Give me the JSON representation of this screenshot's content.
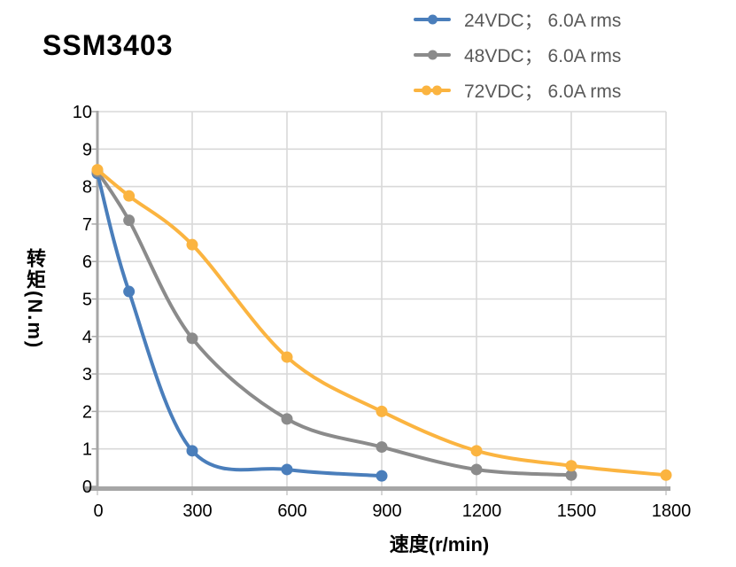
{
  "title": "SSM3403",
  "legend": [
    {
      "id": "24vdc",
      "label": "24VDC； 6.0A rms",
      "color": "#4A7EBB",
      "dots": 1
    },
    {
      "id": "48vdc",
      "label": "48VDC； 6.0A rms",
      "color": "#8B8B8B",
      "dots": 1
    },
    {
      "id": "72vdc",
      "label": "72VDC； 6.0A rms",
      "color": "#FBB440",
      "dots": 2
    }
  ],
  "chart_data": {
    "type": "line",
    "title": "SSM3403",
    "xlabel": "速度(r/min)",
    "ylabel": "转矩(N.m)",
    "xlim": [
      0,
      1800
    ],
    "ylim": [
      0,
      10
    ],
    "x_ticks": [
      0,
      300,
      600,
      900,
      1200,
      1500,
      1800
    ],
    "y_ticks": [
      0,
      1,
      2,
      3,
      4,
      5,
      6,
      7,
      8,
      9,
      10
    ],
    "grid": true,
    "legend_position": "top-right",
    "marker": "circle",
    "smooth": true,
    "series": [
      {
        "name": "24VDC； 6.0A rms",
        "color": "#4A7EBB",
        "x": [
          0,
          100,
          300,
          600,
          900
        ],
        "y": [
          8.35,
          5.2,
          0.95,
          0.45,
          0.28
        ]
      },
      {
        "name": "48VDC； 6.0A rms",
        "color": "#8B8B8B",
        "x": [
          0,
          100,
          300,
          600,
          900,
          1200,
          1500
        ],
        "y": [
          8.4,
          7.1,
          3.95,
          1.8,
          1.05,
          0.45,
          0.3
        ]
      },
      {
        "name": "72VDC； 6.0A rms",
        "color": "#FBB440",
        "x": [
          0,
          100,
          300,
          600,
          900,
          1200,
          1500,
          1800
        ],
        "y": [
          8.45,
          7.75,
          6.45,
          3.45,
          2.0,
          0.95,
          0.55,
          0.3
        ]
      }
    ],
    "colors": {
      "grid": "#D9D9D9",
      "axis": "#A6A6A6",
      "tick_label": "#000000",
      "legend_text": "#595959",
      "background": "#FFFFFF"
    }
  }
}
